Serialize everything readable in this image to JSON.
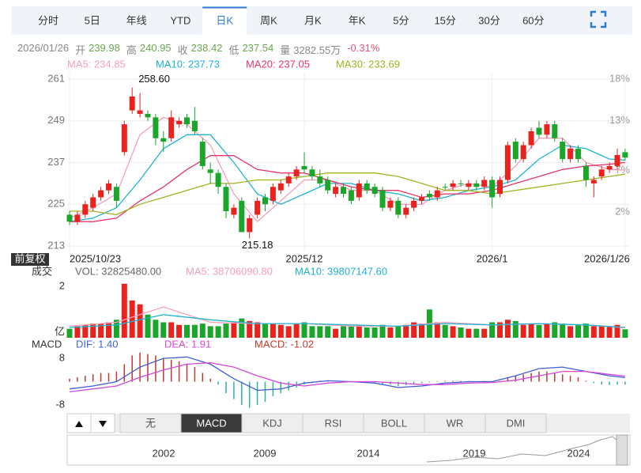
{
  "tabs": [
    "分时",
    "5日",
    "年线",
    "YTD",
    "日K",
    "周K",
    "月K",
    "年K",
    "5分",
    "15分",
    "30分",
    "60分"
  ],
  "active_tab": 4,
  "info": {
    "date": "2026/01/26",
    "fields": [
      "开",
      "高",
      "收",
      "低",
      "量"
    ],
    "volume": "3282.55万",
    "change": "-0.31%"
  },
  "adjust_label": "前复权",
  "indicator_tabs": [
    "无",
    "MACD",
    "KDJ",
    "RSI",
    "BOLL",
    "WR",
    "DMI"
  ],
  "active_indicator": 1,
  "timeline": {
    "labels": [
      "2002",
      "2009",
      "2014",
      "2019",
      "2024"
    ]
  },
  "chart_data": [
    {
      "type": "candlestick",
      "up_color": "#e8231e",
      "down_color": "#1aa62a",
      "candles": [
        [
          222,
          223,
          219,
          220
        ],
        [
          220,
          223,
          219,
          222
        ],
        [
          222,
          226,
          221,
          225
        ],
        [
          224,
          228,
          223,
          227
        ],
        [
          227,
          230,
          226,
          229
        ],
        [
          229,
          232,
          228,
          231
        ],
        [
          230,
          231,
          224,
          226
        ],
        [
          240,
          249,
          239,
          248
        ],
        [
          252,
          258.6,
          251,
          256
        ],
        [
          251,
          257,
          250,
          252
        ],
        [
          251,
          252,
          249,
          250
        ],
        [
          250,
          251,
          242,
          244
        ],
        [
          244,
          246,
          240,
          243
        ],
        [
          244,
          252,
          243,
          250
        ],
        [
          248,
          250,
          247,
          249
        ],
        [
          250,
          251,
          247,
          248
        ],
        [
          249,
          253,
          245,
          246
        ],
        [
          243,
          244,
          235,
          236
        ],
        [
          235,
          237,
          231,
          234
        ],
        [
          234,
          235,
          228,
          230
        ],
        [
          230,
          231,
          221,
          223
        ],
        [
          222,
          225,
          221,
          224
        ],
        [
          226,
          227,
          217,
          217
        ],
        [
          217,
          222,
          215.18,
          221
        ],
        [
          222,
          227,
          221,
          226
        ],
        [
          227,
          228,
          223,
          225
        ],
        [
          226,
          231,
          225,
          230
        ],
        [
          229,
          232,
          228,
          231
        ],
        [
          231,
          234,
          230,
          233
        ],
        [
          233,
          236,
          232,
          235
        ],
        [
          236,
          240,
          234,
          235
        ],
        [
          235,
          236,
          232,
          233
        ],
        [
          233,
          235,
          230,
          231
        ],
        [
          232,
          233,
          228,
          229
        ],
        [
          228,
          231,
          227,
          230
        ],
        [
          230,
          231,
          227,
          228
        ],
        [
          229,
          230,
          225,
          226
        ],
        [
          227,
          232,
          226,
          231
        ],
        [
          231,
          232,
          228,
          229
        ],
        [
          230,
          231,
          227,
          228
        ],
        [
          229,
          230,
          223,
          224
        ],
        [
          224,
          227,
          223,
          226
        ],
        [
          226,
          227,
          221,
          222
        ],
        [
          222,
          225,
          221,
          224
        ],
        [
          224,
          227,
          223,
          226
        ],
        [
          226,
          228,
          225,
          227
        ],
        [
          228,
          229,
          226,
          227
        ],
        [
          227,
          230,
          226,
          229
        ],
        [
          230,
          231,
          229,
          230
        ],
        [
          230,
          232,
          229,
          231
        ],
        [
          231,
          232,
          230,
          231
        ],
        [
          230,
          232,
          229,
          231
        ],
        [
          231,
          232,
          229,
          230
        ],
        [
          230,
          233,
          229,
          232
        ],
        [
          232,
          233,
          224,
          227
        ],
        [
          228,
          233,
          227,
          232
        ],
        [
          232,
          243,
          231,
          242
        ],
        [
          243,
          244,
          237,
          238
        ],
        [
          238,
          243,
          237,
          242
        ],
        [
          242,
          247,
          241,
          246
        ],
        [
          247,
          249,
          244,
          245
        ],
        [
          245,
          249,
          244,
          248
        ],
        [
          248,
          249,
          243,
          244
        ],
        [
          243,
          244,
          237,
          238
        ],
        [
          238,
          242,
          237,
          241
        ],
        [
          241,
          242,
          237,
          238
        ],
        [
          236,
          237,
          230,
          232
        ],
        [
          231,
          233,
          227,
          232
        ],
        [
          233,
          236,
          232,
          235
        ],
        [
          235,
          237,
          234,
          236
        ],
        [
          236,
          241,
          235,
          239.16
        ],
        [
          239.98,
          240.95,
          237.54,
          238.42
        ]
      ],
      "x_labels": [
        {
          "index": 0,
          "label": "2025/10/23"
        },
        {
          "index": 30,
          "label": "2025/12"
        },
        {
          "index": 54,
          "label": "2026/1"
        },
        {
          "index": 71,
          "label": "2026/1/26"
        }
      ],
      "annotations": [
        {
          "index": 8,
          "label": "258.60"
        },
        {
          "index": 23,
          "label": "215.18"
        }
      ],
      "ylim": [
        213,
        261
      ],
      "yticks": [
        213,
        225,
        237,
        249,
        261
      ],
      "y2lim": [
        -2.1,
        18
      ],
      "y2ticks": [
        {
          "value": 18,
          "label": "18%"
        },
        {
          "value": 13,
          "label": "13%"
        },
        {
          "value": 7,
          "label": "7%"
        },
        {
          "value": 2,
          "label": "2%"
        }
      ],
      "grid": true,
      "series": [
        {
          "legend": "MA5: 234.85",
          "color": "#f59fb9",
          "x": [
            0,
            3,
            6,
            9,
            12,
            15,
            18,
            21,
            24,
            27,
            30,
            33,
            36,
            39,
            42,
            45,
            48,
            51,
            54,
            57,
            60,
            63,
            66,
            69,
            71
          ],
          "values": [
            221,
            224,
            228,
            245,
            250,
            248,
            242,
            228,
            220,
            226,
            232,
            232,
            229,
            229,
            225,
            225,
            229,
            231,
            230,
            236,
            244,
            244,
            237,
            235,
            234.85
          ]
        },
        {
          "legend": "MA10: 237.73",
          "color": "#1fb3d4",
          "x": [
            0,
            3,
            6,
            9,
            12,
            15,
            18,
            21,
            24,
            27,
            30,
            33,
            36,
            39,
            42,
            45,
            48,
            51,
            54,
            57,
            60,
            63,
            66,
            69,
            71
          ],
          "values": [
            220,
            221,
            224,
            232,
            241,
            245,
            245,
            237,
            228,
            225,
            228,
            231,
            231,
            229,
            228,
            226,
            227,
            229,
            230,
            232,
            238,
            242,
            241,
            238,
            237.73
          ]
        },
        {
          "legend": "MA20: 237.05",
          "color": "#e8366a",
          "x": [
            0,
            3,
            6,
            9,
            12,
            15,
            18,
            21,
            24,
            27,
            30,
            33,
            36,
            39,
            42,
            45,
            48,
            51,
            54,
            57,
            60,
            63,
            66,
            69,
            71
          ],
          "values": [
            220,
            220,
            221,
            226,
            230,
            235,
            239,
            239,
            235,
            234,
            234,
            232,
            230,
            229,
            229,
            227,
            228,
            228,
            229,
            231,
            233,
            235,
            236,
            236.5,
            237.05
          ]
        },
        {
          "legend": "MA30: 233.69",
          "color": "#a3b320",
          "x": [
            0,
            3,
            6,
            9,
            12,
            15,
            18,
            21,
            24,
            27,
            30,
            33,
            36,
            39,
            42,
            45,
            48,
            51,
            54,
            57,
            60,
            63,
            66,
            69,
            71
          ],
          "values": [
            223,
            223,
            222,
            225,
            227,
            229,
            231,
            231,
            232,
            232,
            233,
            234,
            234,
            234,
            233,
            231,
            229,
            229,
            228,
            229,
            230,
            231,
            232,
            233,
            233.69
          ]
        }
      ]
    },
    {
      "type": "volume",
      "title": "成交",
      "vol_label": "VOL: 32825480.00",
      "unit": "亿",
      "values": [
        0.35,
        0.45,
        0.5,
        0.55,
        0.55,
        0.6,
        0.7,
        2.1,
        1.45,
        1.3,
        0.9,
        0.7,
        0.6,
        0.6,
        0.5,
        0.5,
        0.5,
        0.55,
        0.45,
        0.45,
        0.55,
        0.6,
        0.75,
        0.65,
        0.6,
        0.55,
        0.55,
        0.5,
        0.45,
        0.55,
        0.6,
        0.45,
        0.45,
        0.45,
        0.35,
        0.45,
        0.45,
        0.5,
        0.4,
        0.4,
        0.5,
        0.4,
        0.45,
        0.5,
        0.6,
        0.55,
        1.1,
        0.6,
        0.5,
        0.45,
        0.4,
        0.35,
        0.35,
        0.35,
        0.6,
        0.6,
        0.7,
        0.65,
        0.5,
        0.55,
        0.5,
        0.55,
        0.6,
        0.55,
        0.45,
        0.5,
        0.55,
        0.45,
        0.45,
        0.45,
        0.5,
        0.3282548
      ],
      "ylim": [
        0,
        2
      ],
      "yticks": [
        2
      ],
      "series": [
        {
          "legend": "MA5: 38706090.80",
          "color": "#f59fb9",
          "x": [
            0,
            6,
            12,
            18,
            24,
            30,
            36,
            42,
            48,
            54,
            60,
            66,
            71
          ],
          "values": [
            0.45,
            0.6,
            1.2,
            0.6,
            0.55,
            0.55,
            0.45,
            0.45,
            0.6,
            0.5,
            0.55,
            0.5,
            0.39
          ]
        },
        {
          "legend": "MA10: 39807147.60",
          "color": "#1fb3d4",
          "x": [
            0,
            6,
            12,
            18,
            24,
            30,
            36,
            42,
            48,
            54,
            60,
            66,
            71
          ],
          "values": [
            0.4,
            0.5,
            0.9,
            0.7,
            0.55,
            0.55,
            0.5,
            0.45,
            0.55,
            0.5,
            0.55,
            0.5,
            0.4
          ]
        }
      ]
    },
    {
      "type": "macd",
      "title": "MACD",
      "hist_legend": "MACD: -1.02",
      "hist_color_up": "#c0392b",
      "hist_color_down": "#2bb5a0",
      "values": [
        1,
        1.5,
        2,
        2.5,
        3,
        3,
        3.5,
        6,
        9,
        10,
        9.5,
        9,
        8,
        7.5,
        7,
        6,
        5,
        3,
        1,
        -1,
        -4,
        -6,
        -8,
        -9,
        -8,
        -7,
        -5,
        -4,
        -3,
        -2,
        -1,
        -0.5,
        0.3,
        0.2,
        0.2,
        0.1,
        -0.3,
        0.2,
        -0.2,
        -0.5,
        -1,
        -1,
        -1.5,
        -1.2,
        -1,
        -0.5,
        -0.3,
        0.2,
        0.3,
        0.3,
        0.2,
        0.2,
        0.1,
        0.2,
        -0.3,
        0.1,
        1.5,
        2,
        2.5,
        3,
        3.5,
        3.5,
        3,
        2.5,
        2,
        1.5,
        0.3,
        -0.5,
        -1,
        -1.2,
        -1,
        -1.02
      ],
      "ylim": [
        -10.2,
        10.2
      ],
      "yticks": [
        8,
        -8
      ],
      "series": [
        {
          "legend": "DIF: 1.40",
          "color": "#3f5fd8",
          "x": [
            0,
            3,
            6,
            9,
            12,
            15,
            18,
            21,
            24,
            27,
            30,
            33,
            36,
            39,
            42,
            45,
            48,
            51,
            54,
            57,
            60,
            63,
            66,
            69,
            71
          ],
          "values": [
            -2.5,
            -1.5,
            0,
            5,
            8,
            8.5,
            6,
            1,
            -3,
            -2.5,
            -0.5,
            0.3,
            0,
            -0.5,
            -2,
            -1.5,
            -0.5,
            0,
            0,
            2,
            4.5,
            5,
            3.5,
            2,
            1.4
          ]
        },
        {
          "legend": "DEA: 1.91",
          "color": "#d548d8",
          "x": [
            0,
            3,
            6,
            9,
            12,
            15,
            18,
            21,
            24,
            27,
            30,
            33,
            36,
            39,
            42,
            45,
            48,
            51,
            54,
            57,
            60,
            63,
            66,
            69,
            71
          ],
          "values": [
            -3.5,
            -2.5,
            -1.5,
            1.5,
            4,
            6,
            6.5,
            5,
            2,
            -0.5,
            -1.5,
            -0.5,
            0,
            0,
            -0.5,
            -1,
            -1,
            -0.5,
            -0.3,
            0.5,
            2,
            3.5,
            3.5,
            2.5,
            1.91
          ]
        }
      ]
    }
  ]
}
